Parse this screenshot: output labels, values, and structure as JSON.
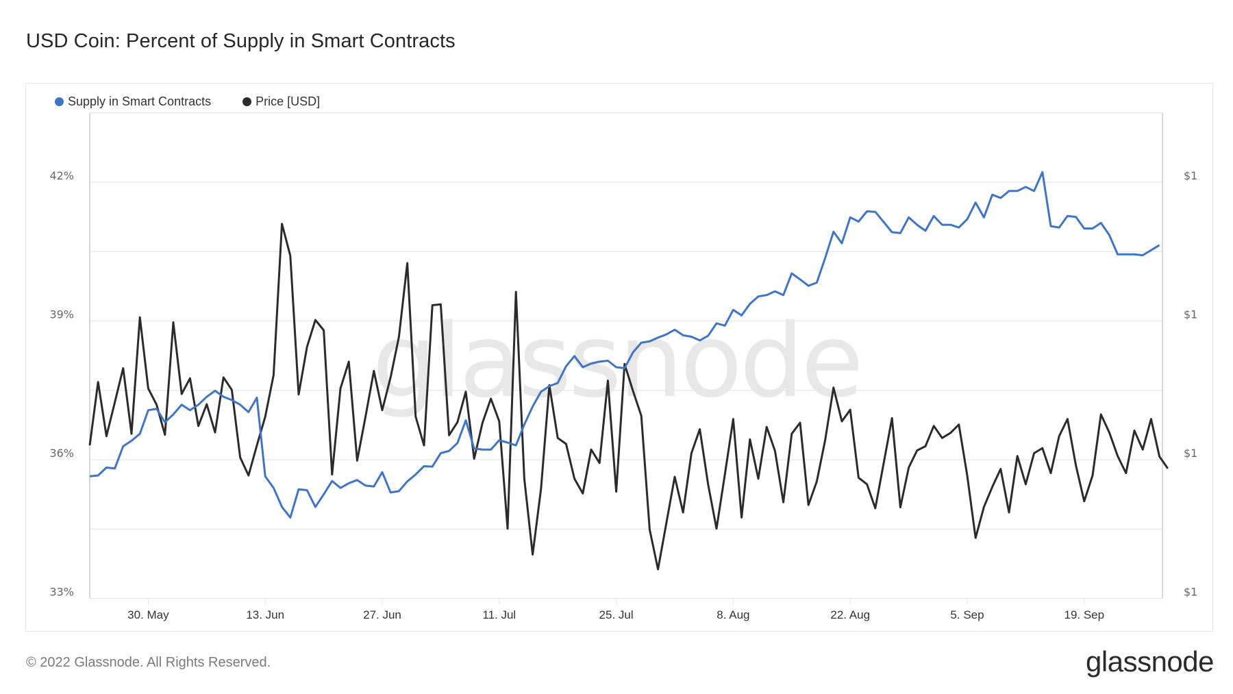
{
  "header": {
    "title": "USD Coin: Percent of Supply in Smart Contracts"
  },
  "legend": [
    {
      "label": "Supply in Smart Contracts",
      "color": "#3f74c6"
    },
    {
      "label": "Price [USD]",
      "color": "#2b2b2b"
    }
  ],
  "watermark": "glassnode",
  "footer": {
    "copyright": "© 2022 Glassnode. All Rights Reserved.",
    "logo": "glassnode"
  },
  "colors": {
    "supply": "#3f74c6",
    "price": "#2b2b2b",
    "grid": "#e6e6e6",
    "axis_text": "#666666"
  },
  "chart_data": {
    "type": "line",
    "title": "USD Coin: Percent of Supply in Smart Contracts",
    "xlabel": "",
    "ylabel": "Supply in Smart Contracts (%)",
    "y2label": "Price [USD]",
    "x_start": "23 May 2022",
    "x_step": "1 day",
    "x_ticks": [
      "30. May",
      "13. Jun",
      "27. Jun",
      "11. Jul",
      "25. Jul",
      "8. Aug",
      "22. Aug",
      "5. Sep",
      "19. Sep"
    ],
    "y_ticks": [
      "42%",
      "39%",
      "36%",
      "33%"
    ],
    "y_tick_values": [
      42,
      39,
      36,
      33
    ],
    "y2_ticks": [
      "$1",
      "$1",
      "$1",
      "$1"
    ],
    "ylim": [
      33,
      43.5
    ],
    "grid": true,
    "legend_position": "top-left",
    "series": [
      {
        "name": "Supply in Smart Contracts",
        "axis": "left",
        "unit": "%",
        "values": [
          35.64,
          35.66,
          35.83,
          35.81,
          36.29,
          36.41,
          36.56,
          37.07,
          37.1,
          36.81,
          36.98,
          37.19,
          37.07,
          37.19,
          37.36,
          37.49,
          37.36,
          37.29,
          37.19,
          37.03,
          37.34,
          35.64,
          35.39,
          34.98,
          34.75,
          35.36,
          35.34,
          34.98,
          35.25,
          35.54,
          35.39,
          35.49,
          35.56,
          35.44,
          35.42,
          35.73,
          35.29,
          35.32,
          35.53,
          35.68,
          35.86,
          35.85,
          36.14,
          36.19,
          36.36,
          36.85,
          36.24,
          36.22,
          36.22,
          36.42,
          36.37,
          36.31,
          36.76,
          37.15,
          37.47,
          37.59,
          37.66,
          38.02,
          38.24,
          38.0,
          38.08,
          38.12,
          38.14,
          38.0,
          37.98,
          38.32,
          38.53,
          38.56,
          38.64,
          38.71,
          38.81,
          38.69,
          38.66,
          38.58,
          38.68,
          38.95,
          38.9,
          39.24,
          39.12,
          39.37,
          39.53,
          39.56,
          39.64,
          39.56,
          40.03,
          39.9,
          39.76,
          39.83,
          40.36,
          40.93,
          40.68,
          41.24,
          41.15,
          41.37,
          41.36,
          41.14,
          40.92,
          40.9,
          41.24,
          41.08,
          40.95,
          41.27,
          41.08,
          41.08,
          41.02,
          41.2,
          41.56,
          41.24,
          41.73,
          41.66,
          41.81,
          41.81,
          41.9,
          41.81,
          42.22,
          41.05,
          41.02,
          41.27,
          41.25,
          41.0,
          41.0,
          41.12,
          40.86,
          40.44,
          40.44,
          40.44,
          40.42,
          40.53,
          40.64
        ]
      },
      {
        "name": "Price [USD]",
        "axis": "right",
        "unit": "USD",
        "note_scale": "right axis ticks all round to $1; values plotted on same vertical positions as left-axis levels",
        "plot_levels": [
          36.31,
          37.68,
          36.51,
          37.24,
          37.98,
          36.56,
          39.08,
          37.54,
          37.19,
          36.54,
          38.97,
          37.42,
          37.76,
          36.73,
          37.2,
          36.59,
          37.78,
          37.51,
          36.05,
          35.66,
          36.31,
          36.93,
          37.83,
          41.1,
          40.41,
          37.41,
          38.44,
          39.02,
          38.8,
          35.68,
          37.54,
          38.12,
          35.98,
          36.93,
          37.92,
          37.07,
          37.78,
          38.66,
          40.25,
          36.93,
          36.31,
          39.34,
          39.36,
          36.53,
          36.81,
          37.47,
          36.02,
          36.8,
          37.32,
          36.83,
          34.51,
          39.63,
          35.59,
          33.95,
          35.37,
          37.61,
          36.47,
          36.34,
          35.59,
          35.27,
          36.22,
          35.93,
          37.71,
          35.31,
          38.07,
          37.49,
          36.95,
          34.49,
          33.63,
          34.63,
          35.63,
          34.86,
          36.14,
          36.66,
          35.46,
          34.51,
          35.68,
          36.88,
          34.75,
          36.44,
          35.59,
          36.71,
          36.19,
          35.08,
          36.56,
          36.8,
          35.02,
          35.53,
          36.42,
          37.56,
          36.83,
          37.08,
          35.61,
          35.47,
          34.95,
          35.92,
          36.9,
          34.97,
          35.83,
          36.2,
          36.29,
          36.73,
          36.47,
          36.58,
          36.76,
          35.66,
          34.31,
          34.98,
          35.41,
          35.8,
          34.86,
          36.08,
          35.47,
          36.14,
          36.25,
          35.71,
          36.51,
          36.88,
          35.88,
          35.1,
          35.66,
          36.98,
          36.59,
          36.08,
          35.71,
          36.63,
          36.22,
          36.88,
          36.07,
          35.81
        ]
      }
    ]
  }
}
